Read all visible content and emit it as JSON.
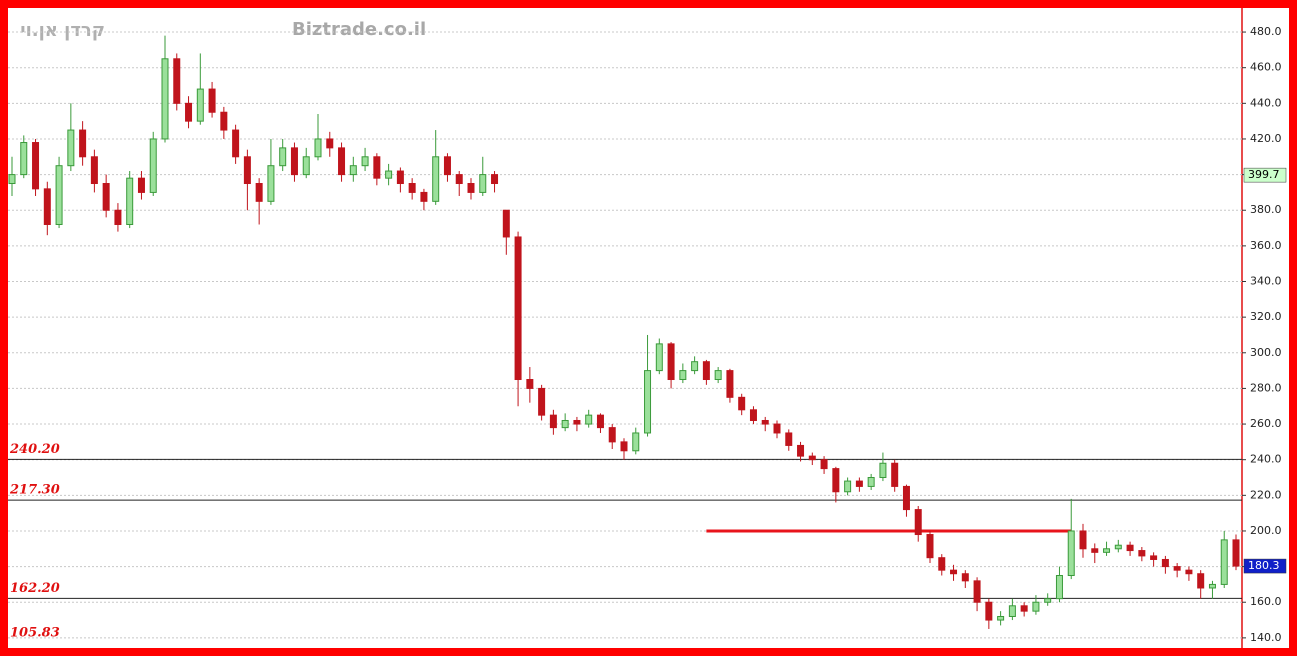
{
  "chart_data": {
    "type": "candlestick",
    "title": "קרדן אן.וי",
    "subtitle": "Biztrade.co.il",
    "ylim": [
      136,
      493.5
    ],
    "yticks": [
      {
        "value": 140,
        "label": "140.0"
      },
      {
        "value": 160,
        "label": "160.0"
      },
      {
        "value": 180,
        "label": "180.0"
      },
      {
        "value": 200,
        "label": "200.0"
      },
      {
        "value": 220,
        "label": "220.0"
      },
      {
        "value": 240,
        "label": "240.0"
      },
      {
        "value": 260,
        "label": "260.0"
      },
      {
        "value": 280,
        "label": "280.0"
      },
      {
        "value": 300,
        "label": "300.0"
      },
      {
        "value": 320,
        "label": "320.0"
      },
      {
        "value": 340,
        "label": "340.0"
      },
      {
        "value": 360,
        "label": "360.0"
      },
      {
        "value": 380,
        "label": "380.0"
      },
      {
        "value": 400,
        "label": "400.0"
      },
      {
        "value": 420,
        "label": "420.0"
      },
      {
        "value": 440,
        "label": "440.0"
      },
      {
        "value": 460,
        "label": "460.0"
      },
      {
        "value": 480,
        "label": "480.0"
      }
    ],
    "grid": true,
    "up_color": "#3a9a3a",
    "down_color": "#c0141c",
    "levels": [
      {
        "value": 240.2,
        "label": "240.20"
      },
      {
        "value": 217.3,
        "label": "217.30"
      },
      {
        "value": 162.2,
        "label": "162.20"
      },
      {
        "value": 105.83,
        "label": "105.83"
      }
    ],
    "trend_line": {
      "value": 200,
      "from": 59,
      "to": 90,
      "color": "#e8141c"
    },
    "price_labels": [
      {
        "value": 399.7,
        "color": "#ccffcc",
        "text_color": "#000000"
      },
      {
        "value": 180.3,
        "color": "#1020c8",
        "text_color": "#ffffff"
      }
    ],
    "candles": [
      [
        395,
        410,
        388,
        400
      ],
      [
        400,
        422,
        398,
        418
      ],
      [
        418,
        420,
        388,
        392
      ],
      [
        392,
        396,
        366,
        372
      ],
      [
        372,
        410,
        370,
        405
      ],
      [
        405,
        440,
        402,
        425
      ],
      [
        425,
        430,
        405,
        410
      ],
      [
        410,
        414,
        390,
        395
      ],
      [
        395,
        400,
        376,
        380
      ],
      [
        380,
        384,
        368,
        372
      ],
      [
        372,
        402,
        370,
        398
      ],
      [
        398,
        402,
        386,
        390
      ],
      [
        390,
        424,
        388,
        420
      ],
      [
        420,
        478,
        418,
        465
      ],
      [
        465,
        468,
        436,
        440
      ],
      [
        440,
        444,
        426,
        430
      ],
      [
        430,
        468,
        428,
        448
      ],
      [
        448,
        452,
        432,
        435
      ],
      [
        435,
        438,
        420,
        425
      ],
      [
        425,
        428,
        406,
        410
      ],
      [
        410,
        414,
        380,
        395
      ],
      [
        395,
        398,
        372,
        385
      ],
      [
        385,
        420,
        383,
        405
      ],
      [
        405,
        420,
        402,
        415
      ],
      [
        415,
        418,
        396,
        400
      ],
      [
        400,
        415,
        398,
        410
      ],
      [
        410,
        434,
        408,
        420
      ],
      [
        420,
        424,
        410,
        415
      ],
      [
        415,
        418,
        396,
        400
      ],
      [
        400,
        410,
        396,
        405
      ],
      [
        405,
        415,
        402,
        410
      ],
      [
        410,
        412,
        394,
        398
      ],
      [
        398,
        406,
        394,
        402
      ],
      [
        402,
        404,
        390,
        395
      ],
      [
        395,
        398,
        386,
        390
      ],
      [
        390,
        392,
        380,
        385
      ],
      [
        385,
        425,
        383,
        410
      ],
      [
        410,
        412,
        396,
        400
      ],
      [
        400,
        402,
        388,
        395
      ],
      [
        395,
        398,
        386,
        390
      ],
      [
        390,
        410,
        388,
        400
      ],
      [
        400,
        402,
        390,
        395
      ],
      [
        380,
        380,
        355,
        365
      ],
      [
        365,
        368,
        270,
        285
      ],
      [
        285,
        292,
        272,
        280
      ],
      [
        280,
        282,
        262,
        265
      ],
      [
        265,
        268,
        254,
        258
      ],
      [
        258,
        266,
        256,
        262
      ],
      [
        262,
        264,
        256,
        260
      ],
      [
        260,
        268,
        258,
        265
      ],
      [
        265,
        266,
        255,
        258
      ],
      [
        258,
        260,
        246,
        250
      ],
      [
        250,
        252,
        240,
        245
      ],
      [
        245,
        258,
        243,
        255
      ],
      [
        255,
        310,
        253,
        290
      ],
      [
        290,
        308,
        288,
        305
      ],
      [
        305,
        306,
        280,
        285
      ],
      [
        285,
        294,
        283,
        290
      ],
      [
        290,
        298,
        288,
        295
      ],
      [
        295,
        296,
        282,
        285
      ],
      [
        285,
        292,
        283,
        290
      ],
      [
        290,
        291,
        272,
        275
      ],
      [
        275,
        277,
        265,
        268
      ],
      [
        268,
        270,
        260,
        262
      ],
      [
        262,
        264,
        256,
        260
      ],
      [
        260,
        262,
        252,
        255
      ],
      [
        255,
        257,
        245,
        248
      ],
      [
        248,
        250,
        239,
        242
      ],
      [
        242,
        244,
        237,
        240
      ],
      [
        240,
        242,
        232,
        235
      ],
      [
        235,
        236,
        216,
        222
      ],
      [
        222,
        230,
        220,
        228
      ],
      [
        228,
        230,
        222,
        225
      ],
      [
        225,
        232,
        223,
        230
      ],
      [
        230,
        244,
        228,
        238
      ],
      [
        238,
        240,
        222,
        225
      ],
      [
        225,
        226,
        208,
        212
      ],
      [
        212,
        214,
        194,
        198
      ],
      [
        198,
        200,
        182,
        185
      ],
      [
        185,
        187,
        175,
        178
      ],
      [
        178,
        181,
        172,
        176
      ],
      [
        176,
        178,
        168,
        172
      ],
      [
        172,
        174,
        155,
        160
      ],
      [
        160,
        162,
        145,
        150
      ],
      [
        150,
        155,
        147,
        152
      ],
      [
        152,
        162,
        150,
        158
      ],
      [
        158,
        160,
        152,
        155
      ],
      [
        155,
        164,
        153,
        160
      ],
      [
        160,
        165,
        158,
        162
      ],
      [
        162,
        180,
        160,
        175
      ],
      [
        175,
        218,
        173,
        200
      ],
      [
        200,
        204,
        185,
        190
      ],
      [
        190,
        193,
        182,
        188
      ],
      [
        188,
        194,
        186,
        190
      ],
      [
        190,
        195,
        188,
        192
      ],
      [
        192,
        194,
        186,
        189
      ],
      [
        189,
        191,
        183,
        186
      ],
      [
        186,
        188,
        180,
        184
      ],
      [
        184,
        186,
        176,
        180
      ],
      [
        180,
        182,
        174,
        178
      ],
      [
        178,
        180,
        172,
        176
      ],
      [
        176,
        178,
        162,
        168
      ],
      [
        168,
        172,
        162,
        170
      ],
      [
        170,
        200,
        168,
        195
      ],
      [
        195,
        198,
        178,
        180.3
      ]
    ]
  }
}
